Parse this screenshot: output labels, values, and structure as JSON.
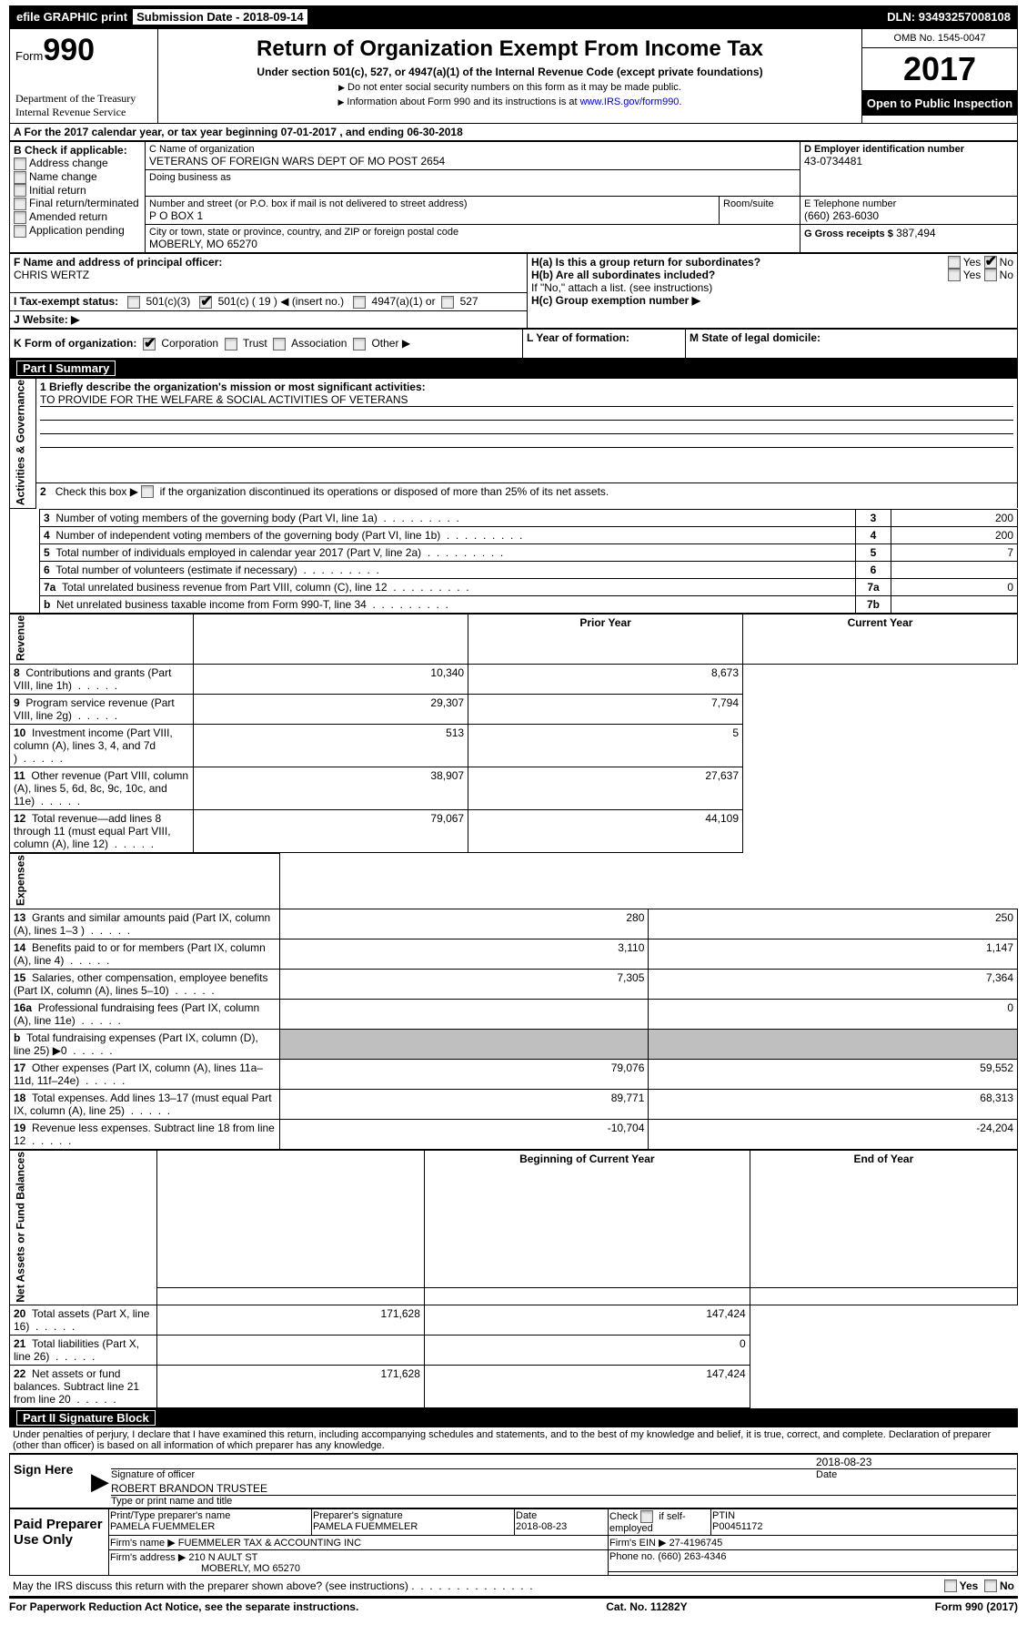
{
  "top_bar": {
    "efile": "efile GRAPHIC print",
    "submission_label": "Submission Date -",
    "submission_date": "2018-09-14",
    "dln_label": "DLN:",
    "dln": "93493257008108"
  },
  "header": {
    "form_prefix": "Form",
    "form_number": "990",
    "department": "Department of the Treasury",
    "irs": "Internal Revenue Service",
    "title": "Return of Organization Exempt From Income Tax",
    "subtitle": "Under section 501(c), 527, or 4947(a)(1) of the Internal Revenue Code (except private foundations)",
    "note1": "Do not enter social security numbers on this form as it may be made public.",
    "note2_prefix": "Information about Form 990 and its instructions is at ",
    "note2_link": "www.IRS.gov/form990",
    "omb": "OMB No. 1545-0047",
    "year": "2017",
    "open_public": "Open to Public Inspection"
  },
  "section_a": {
    "header": "A  For the 2017 calendar year, or tax year beginning 07-01-2017   , and ending 06-30-2018",
    "b_label": "B Check if applicable:",
    "b_items": [
      "Address change",
      "Name change",
      "Initial return",
      "Final return/terminated",
      "Amended return",
      "Application pending"
    ],
    "c_name_label": "C Name of organization",
    "c_name": "VETERANS OF FOREIGN WARS DEPT OF MO POST 2654",
    "dba_label": "Doing business as",
    "addr_label": "Number and street (or P.O. box if mail is not delivered to street address)",
    "room_label": "Room/suite",
    "addr": "P O BOX 1",
    "city_label": "City or town, state or province, country, and ZIP or foreign postal code",
    "city": "MOBERLY, MO  65270",
    "d_label": "D Employer identification number",
    "d_ein": "43-0734481",
    "e_label": "E Telephone number",
    "e_phone": "(660) 263-6030",
    "g_label": "G Gross receipts $",
    "g_amount": "387,494",
    "f_label": "F  Name and address of principal officer:",
    "f_name": "CHRIS WERTZ",
    "ha_label": "H(a)  Is this a group return for subordinates?",
    "hb_label": "H(b)  Are all subordinates included?",
    "hb_note": "If \"No,\" attach a list. (see instructions)",
    "hc_label": "H(c)  Group exemption number ▶",
    "yes": "Yes",
    "no": "No",
    "i_label": "I  Tax-exempt status:",
    "i_opts": [
      "501(c)(3)",
      "501(c) ( 19 ) ◀ (insert no.)",
      "4947(a)(1) or",
      "527"
    ],
    "j_label": "J  Website: ▶",
    "k_label": "K Form of organization:",
    "k_opts": [
      "Corporation",
      "Trust",
      "Association",
      "Other ▶"
    ],
    "l_label": "L Year of formation:",
    "m_label": "M State of legal domicile:"
  },
  "part1": {
    "title": "Part I    Summary",
    "side_activities": "Activities & Governance",
    "side_revenue": "Revenue",
    "side_expenses": "Expenses",
    "side_net": "Net Assets or Fund Balances",
    "l1_label": "1  Briefly describe the organization's mission or most significant activities:",
    "l1_text": "TO PROVIDE FOR THE WELFARE & SOCIAL ACTIVITIES OF VETERANS",
    "l2": "2   Check this box ▶        if the organization discontinued its operations or disposed of more than 25% of its net assets.",
    "rows_gov": [
      {
        "num": "3",
        "label": "Number of voting members of the governing body (Part VI, line 1a)",
        "ref": "3",
        "val": "200"
      },
      {
        "num": "4",
        "label": "Number of independent voting members of the governing body (Part VI, line 1b)",
        "ref": "4",
        "val": "200"
      },
      {
        "num": "5",
        "label": "Total number of individuals employed in calendar year 2017 (Part V, line 2a)",
        "ref": "5",
        "val": "7"
      },
      {
        "num": "6",
        "label": "Total number of volunteers (estimate if necessary)",
        "ref": "6",
        "val": ""
      },
      {
        "num": "7a",
        "label": "Total unrelated business revenue from Part VIII, column (C), line 12",
        "ref": "7a",
        "val": "0"
      },
      {
        "num": "b",
        "label": "Net unrelated business taxable income from Form 990-T, line 34",
        "ref": "7b",
        "val": ""
      }
    ],
    "col_prior": "Prior Year",
    "col_current": "Current Year",
    "rows_rev": [
      {
        "num": "8",
        "label": "Contributions and grants (Part VIII, line 1h)",
        "prior": "10,340",
        "curr": "8,673"
      },
      {
        "num": "9",
        "label": "Program service revenue (Part VIII, line 2g)",
        "prior": "29,307",
        "curr": "7,794"
      },
      {
        "num": "10",
        "label": "Investment income (Part VIII, column (A), lines 3, 4, and 7d )",
        "prior": "513",
        "curr": "5"
      },
      {
        "num": "11",
        "label": "Other revenue (Part VIII, column (A), lines 5, 6d, 8c, 9c, 10c, and 11e)",
        "prior": "38,907",
        "curr": "27,637"
      },
      {
        "num": "12",
        "label": "Total revenue—add lines 8 through 11 (must equal Part VIII, column (A), line 12)",
        "prior": "79,067",
        "curr": "44,109"
      }
    ],
    "rows_exp": [
      {
        "num": "13",
        "label": "Grants and similar amounts paid (Part IX, column (A), lines 1–3 )",
        "prior": "280",
        "curr": "250"
      },
      {
        "num": "14",
        "label": "Benefits paid to or for members (Part IX, column (A), line 4)",
        "prior": "3,110",
        "curr": "1,147"
      },
      {
        "num": "15",
        "label": "Salaries, other compensation, employee benefits (Part IX, column (A), lines 5–10)",
        "prior": "7,305",
        "curr": "7,364"
      },
      {
        "num": "16a",
        "label": "Professional fundraising fees (Part IX, column (A), line 11e)",
        "prior": "",
        "curr": "0"
      },
      {
        "num": "b",
        "label": "Total fundraising expenses (Part IX, column (D), line 25) ▶0",
        "prior": "__gray__",
        "curr": "__gray__"
      },
      {
        "num": "17",
        "label": "Other expenses (Part IX, column (A), lines 11a–11d, 11f–24e)",
        "prior": "79,076",
        "curr": "59,552"
      },
      {
        "num": "18",
        "label": "Total expenses. Add lines 13–17 (must equal Part IX, column (A), line 25)",
        "prior": "89,771",
        "curr": "68,313"
      },
      {
        "num": "19",
        "label": "Revenue less expenses. Subtract line 18 from line 12",
        "prior": "-10,704",
        "curr": "-24,204"
      }
    ],
    "col_begin": "Beginning of Current Year",
    "col_end": "End of Year",
    "rows_net": [
      {
        "num": "20",
        "label": "Total assets (Part X, line 16)",
        "prior": "171,628",
        "curr": "147,424"
      },
      {
        "num": "21",
        "label": "Total liabilities (Part X, line 26)",
        "prior": "",
        "curr": "0"
      },
      {
        "num": "22",
        "label": "Net assets or fund balances. Subtract line 21 from line 20",
        "prior": "171,628",
        "curr": "147,424"
      }
    ]
  },
  "part2": {
    "title": "Part II    Signature Block",
    "perjury": "Under penalties of perjury, I declare that I have examined this return, including accompanying schedules and statements, and to the best of my knowledge and belief, it is true, correct, and complete. Declaration of preparer (other than officer) is based on all information of which preparer has any knowledge.",
    "sign_here": "Sign Here",
    "sig_officer_label": "Signature of officer",
    "date_label": "Date",
    "sig_date": "2018-08-23",
    "officer_name": "ROBERT BRANDON TRUSTEE",
    "name_title_label": "Type or print name and title",
    "paid_preparer": "Paid Preparer Use Only",
    "prep_name_label": "Print/Type preparer's name",
    "prep_name": "PAMELA FUEMMELER",
    "prep_sig_label": "Preparer's signature",
    "prep_sig": "PAMELA FUEMMELER",
    "prep_date_label": "Date",
    "prep_date": "2018-08-23",
    "self_emp_label": "Check       if self-employed",
    "ptin_label": "PTIN",
    "ptin": "P00451172",
    "firm_name_label": "Firm's name     ▶",
    "firm_name": "FUEMMELER TAX & ACCOUNTING INC",
    "firm_ein_label": "Firm's EIN ▶",
    "firm_ein": "27-4196745",
    "firm_addr_label": "Firm's address ▶",
    "firm_addr1": "210 N AULT ST",
    "firm_addr2": "MOBERLY, MO  65270",
    "firm_phone_label": "Phone no.",
    "firm_phone": "(660) 263-4346",
    "discuss": "May the IRS discuss this return with the preparer shown above? (see instructions)"
  },
  "footer": {
    "paperwork": "For Paperwork Reduction Act Notice, see the separate instructions.",
    "catno": "Cat. No. 11282Y",
    "form": "Form 990 (2017)"
  },
  "colors": {
    "black": "#000000",
    "gray_cell": "#bfbfbf",
    "link": "#0000cc"
  }
}
